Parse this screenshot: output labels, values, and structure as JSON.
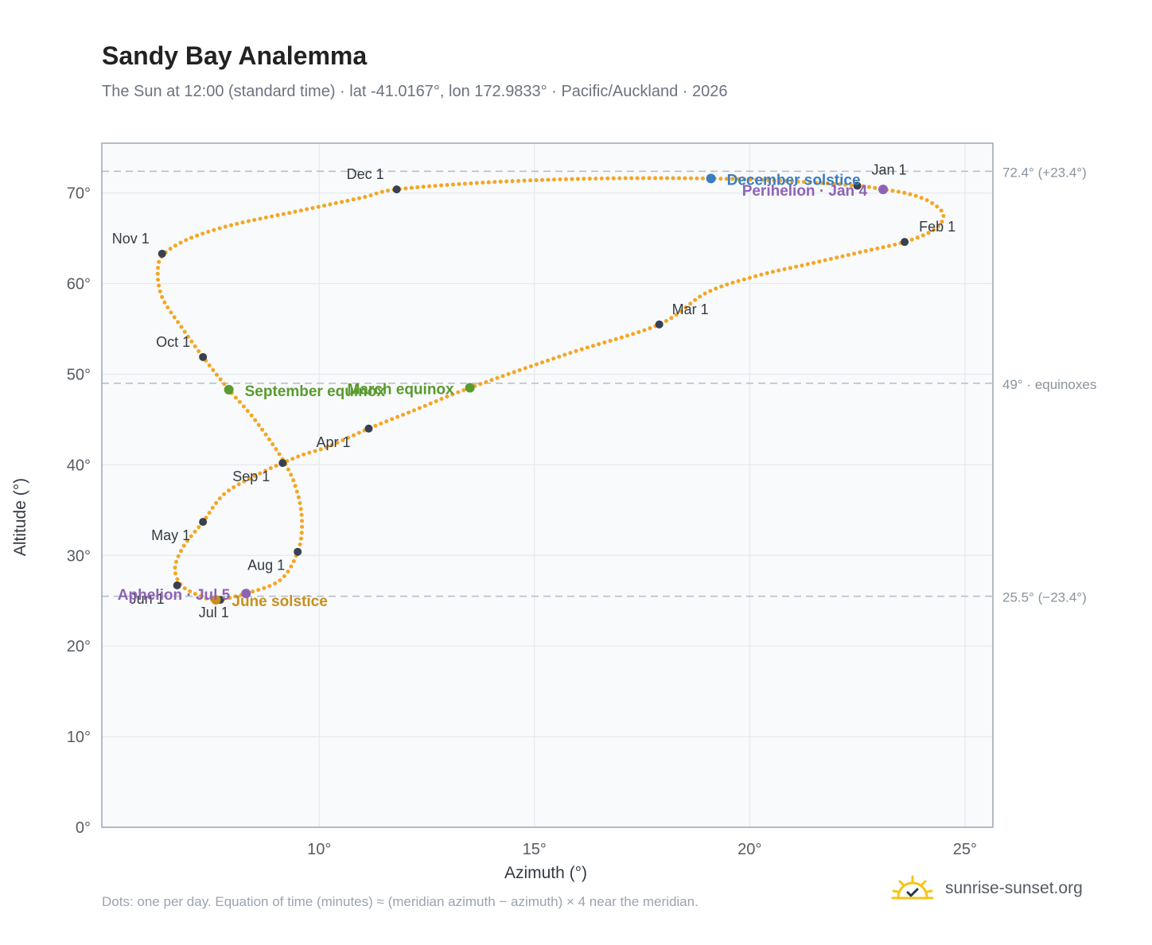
{
  "header": {
    "title": "Sandy Bay Analemma",
    "subtitle": "The Sun at 12:00 (standard time) · lat -41.0167°, lon 172.9833° · Pacific/Auckland · 2026"
  },
  "footer": {
    "note": "Dots: one per day. Equation of time (minutes) ≈ (meridian azimuth − azimuth) × 4 near the meridian.",
    "brand": "sunrise-sunset.org"
  },
  "colors": {
    "curve": "#f5a623",
    "month_marker": "#374151",
    "equinox": "#5a9a2e",
    "june_solstice": "#c8901a",
    "december_solstice": "#3b7dc0",
    "apsis": "#8e63b5",
    "reference_line": "#b8c0cc",
    "plot_background": "#f8fafc",
    "grid": "#e5e9ef",
    "frame": "#9aa5b4"
  },
  "chart_data": {
    "type": "scatter",
    "xlabel": "Azimuth (°)",
    "ylabel": "Altitude (°)",
    "xlim": [
      4.95,
      25.65
    ],
    "ylim": [
      0,
      75.5
    ],
    "x_ticks": [
      10,
      15,
      20,
      25
    ],
    "x_tick_labels": [
      "10°",
      "15°",
      "20°",
      "25°"
    ],
    "y_ticks": [
      0,
      10,
      20,
      30,
      40,
      50,
      60,
      70
    ],
    "y_tick_labels": [
      "0°",
      "10°",
      "20°",
      "30°",
      "40°",
      "50°",
      "60°",
      "70°"
    ],
    "grid": true,
    "reference_lines": [
      {
        "y": 72.4,
        "label": "72.4° (+23.4°)"
      },
      {
        "y": 49,
        "label": "49° · equinoxes"
      },
      {
        "y": 25.5,
        "label": "25.5° (−23.4°)"
      }
    ],
    "series": [
      {
        "points": [
          [
            22.5,
            70.8
          ],
          [
            23.1,
            70.4
          ],
          [
            23.7,
            69.9
          ],
          [
            24.2,
            69.0
          ],
          [
            24.5,
            67.6
          ],
          [
            24.3,
            66.0
          ],
          [
            23.6,
            64.6
          ],
          [
            22.6,
            63.5
          ],
          [
            21.4,
            62.2
          ],
          [
            20.2,
            60.9
          ],
          [
            19.0,
            59.0
          ],
          [
            17.9,
            55.5
          ],
          [
            15.8,
            52.3
          ],
          [
            13.5,
            48.5
          ],
          [
            12.3,
            46.2
          ],
          [
            11.15,
            44.0
          ],
          [
            10.2,
            42.0
          ],
          [
            9.5,
            40.9
          ],
          [
            8.6,
            39.0
          ],
          [
            7.8,
            36.8
          ],
          [
            7.3,
            33.7
          ],
          [
            6.85,
            31.0
          ],
          [
            6.65,
            28.6
          ],
          [
            6.8,
            26.7
          ],
          [
            7.2,
            25.6
          ],
          [
            7.6,
            25.1
          ],
          [
            8.3,
            25.8
          ],
          [
            9.1,
            27.3
          ],
          [
            9.5,
            30.4
          ],
          [
            9.6,
            33.5
          ],
          [
            9.5,
            36.8
          ],
          [
            9.2,
            40.2
          ],
          [
            8.5,
            45.0
          ],
          [
            7.9,
            48.3
          ],
          [
            7.3,
            51.9
          ],
          [
            6.8,
            55.2
          ],
          [
            6.35,
            58.5
          ],
          [
            6.25,
            61.5
          ],
          [
            6.4,
            63.3
          ],
          [
            7.0,
            65.0
          ],
          [
            8.0,
            66.5
          ],
          [
            9.5,
            68.0
          ],
          [
            11.0,
            69.5
          ],
          [
            11.8,
            70.4
          ],
          [
            14.0,
            71.2
          ],
          [
            16.5,
            71.6
          ],
          [
            19.1,
            71.6
          ],
          [
            21.0,
            71.3
          ],
          [
            22.5,
            70.8
          ]
        ]
      }
    ],
    "month_markers": [
      {
        "label": "Jan 1",
        "x": 22.5,
        "y": 70.8
      },
      {
        "label": "Feb 1",
        "x": 23.6,
        "y": 64.6
      },
      {
        "label": "Mar 1",
        "x": 17.9,
        "y": 55.5
      },
      {
        "label": "Apr 1",
        "x": 11.15,
        "y": 44.0
      },
      {
        "label": "May 1",
        "x": 7.3,
        "y": 33.7
      },
      {
        "label": "Jun 1",
        "x": 6.7,
        "y": 26.7
      },
      {
        "label": "Jul 1",
        "x": 7.7,
        "y": 25.1
      },
      {
        "label": "Aug 1",
        "x": 9.5,
        "y": 30.4
      },
      {
        "label": "Sep 1",
        "x": 9.15,
        "y": 40.2
      },
      {
        "label": "Oct 1",
        "x": 7.3,
        "y": 51.9
      },
      {
        "label": "Nov 1",
        "x": 6.35,
        "y": 63.3
      },
      {
        "label": "Dec 1",
        "x": 11.8,
        "y": 70.4
      }
    ],
    "events": [
      {
        "label": "March equinox",
        "x": 13.5,
        "y": 48.5,
        "kind": "equinox"
      },
      {
        "label": "September equinox",
        "x": 7.9,
        "y": 48.3,
        "kind": "equinox"
      },
      {
        "label": "June solstice",
        "x": 7.6,
        "y": 25.1,
        "kind": "june_solstice"
      },
      {
        "label": "December solstice",
        "x": 19.1,
        "y": 71.6,
        "kind": "december_solstice"
      },
      {
        "label": "Perihelion · Jan 4",
        "x": 23.1,
        "y": 70.4,
        "kind": "apsis"
      },
      {
        "label": "Aphelion · Jul 5",
        "x": 8.3,
        "y": 25.8,
        "kind": "apsis"
      }
    ]
  }
}
